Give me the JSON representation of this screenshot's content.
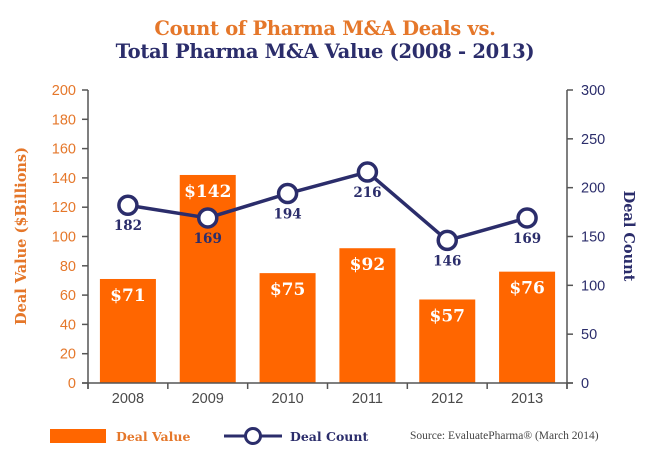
{
  "chart_data": {
    "type": "bar+line",
    "title_line1": "Count of Pharma M&A Deals vs.",
    "title_line2": "Total Pharma M&A Value (2008 - 2013)",
    "categories": [
      "2008",
      "2009",
      "2010",
      "2011",
      "2012",
      "2013"
    ],
    "series": [
      {
        "name": "Deal Value",
        "type": "bar",
        "axis": "left",
        "values": [
          71,
          142,
          75,
          92,
          57,
          76
        ],
        "labels": [
          "$71",
          "$142",
          "$75",
          "$92",
          "$57",
          "$76"
        ],
        "color": "#ff6600"
      },
      {
        "name": "Deal Count",
        "type": "line",
        "axis": "right",
        "values": [
          182,
          169,
          194,
          216,
          146,
          169
        ],
        "labels": [
          "182",
          "169",
          "194",
          "216",
          "146",
          "169"
        ],
        "color": "#2b2d6b"
      }
    ],
    "ylabel_left": "Deal Value ($Billions)",
    "ylabel_right": "Deal Count",
    "ylim_left": [
      0,
      200
    ],
    "ylim_right": [
      0,
      300
    ],
    "yticks_left": [
      "0",
      "20",
      "40",
      "60",
      "80",
      "100",
      "120",
      "140",
      "160",
      "180",
      "200"
    ],
    "yticks_right": [
      "0",
      "50",
      "100",
      "150",
      "200",
      "250",
      "300"
    ],
    "grid": false,
    "legend_position": "bottom-left",
    "legend": [
      "Deal Value",
      "Deal Count"
    ],
    "source": "Source:  EvaluatePharma® (March 2014)"
  },
  "colors": {
    "orange_text": "#e5772a",
    "bar": "#ff6600",
    "navy": "#2b2d6b",
    "axis": "#555555"
  }
}
